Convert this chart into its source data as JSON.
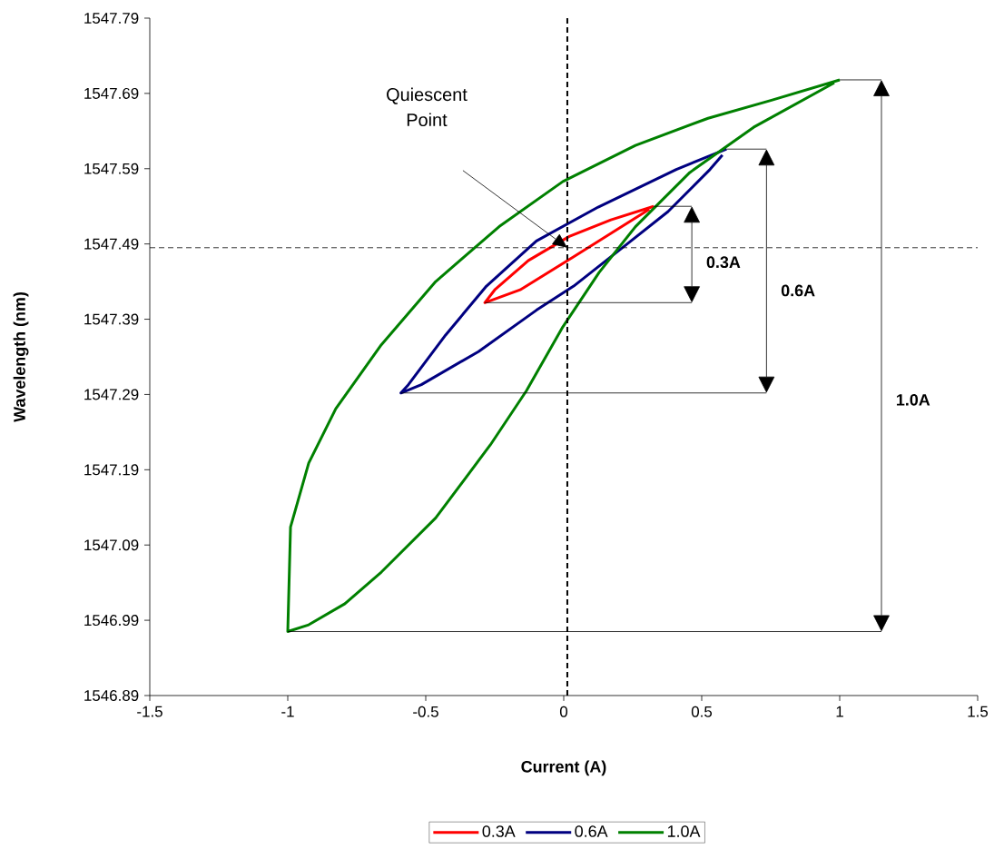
{
  "chart_data": {
    "type": "line",
    "xlabel": "Current (A)",
    "ylabel": "Wavelength (nm)",
    "xlim": [
      -1.5,
      1.5
    ],
    "xticks": [
      -1.5,
      -1,
      -0.5,
      0,
      0.5,
      1,
      1.5
    ],
    "ylim": [
      1546.89,
      1547.79
    ],
    "yticks": [
      1546.89,
      1546.99,
      1547.09,
      1547.19,
      1547.29,
      1547.39,
      1547.49,
      1547.59,
      1547.69,
      1547.79
    ],
    "grid": false,
    "legend": "bottom",
    "marker": "none",
    "line_style": "solid",
    "series": [
      {
        "name": "0.3A",
        "color": "#ff0000",
        "x": [
          0.326,
          0.171,
          0.02,
          -0.128,
          -0.25,
          -0.286,
          -0.158,
          0.036,
          0.184,
          0.31
        ],
        "values": [
          1547.54,
          1547.522,
          1547.5,
          1547.468,
          1547.429,
          1547.412,
          1547.429,
          1547.473,
          1547.507,
          1547.536
        ]
      },
      {
        "name": "0.6A",
        "color": "#000080",
        "x": [
          0.59,
          0.408,
          0.125,
          -0.099,
          -0.28,
          -0.428,
          -0.563,
          -0.59,
          -0.516,
          -0.309,
          -0.099,
          0.036,
          0.23,
          0.378,
          0.53,
          0.575
        ],
        "values": [
          1547.616,
          1547.589,
          1547.539,
          1547.494,
          1547.434,
          1547.369,
          1547.303,
          1547.292,
          1547.303,
          1547.347,
          1547.402,
          1547.434,
          1547.49,
          1547.533,
          1547.589,
          1547.608
        ]
      },
      {
        "name": "1.0A",
        "color": "#008000",
        "x": [
          1.0,
          0.753,
          0.523,
          0.26,
          -0.003,
          -0.234,
          -0.464,
          -0.661,
          -0.826,
          -0.924,
          -0.99,
          -1.0,
          -0.924,
          -0.793,
          -0.661,
          -0.464,
          -0.266,
          -0.135,
          -0.003,
          0.128,
          0.26,
          0.457,
          0.688,
          0.98
        ],
        "values": [
          1547.708,
          1547.681,
          1547.657,
          1547.621,
          1547.573,
          1547.513,
          1547.44,
          1547.356,
          1547.271,
          1547.199,
          1547.114,
          1546.975,
          1546.984,
          1547.012,
          1547.054,
          1547.126,
          1547.223,
          1547.295,
          1547.38,
          1547.452,
          1547.513,
          1547.585,
          1547.645,
          1547.704
        ]
      }
    ],
    "ref_lines": [
      {
        "axis": "y",
        "value": 1547.485,
        "color": "#000000",
        "line_style": "dashed"
      },
      {
        "axis": "x",
        "value": 0.013,
        "color": "#000000",
        "line_style": "dashed"
      }
    ],
    "annotations": [
      "Quiescent Point",
      "0.3A",
      "0.6A",
      "1.0A"
    ]
  }
}
